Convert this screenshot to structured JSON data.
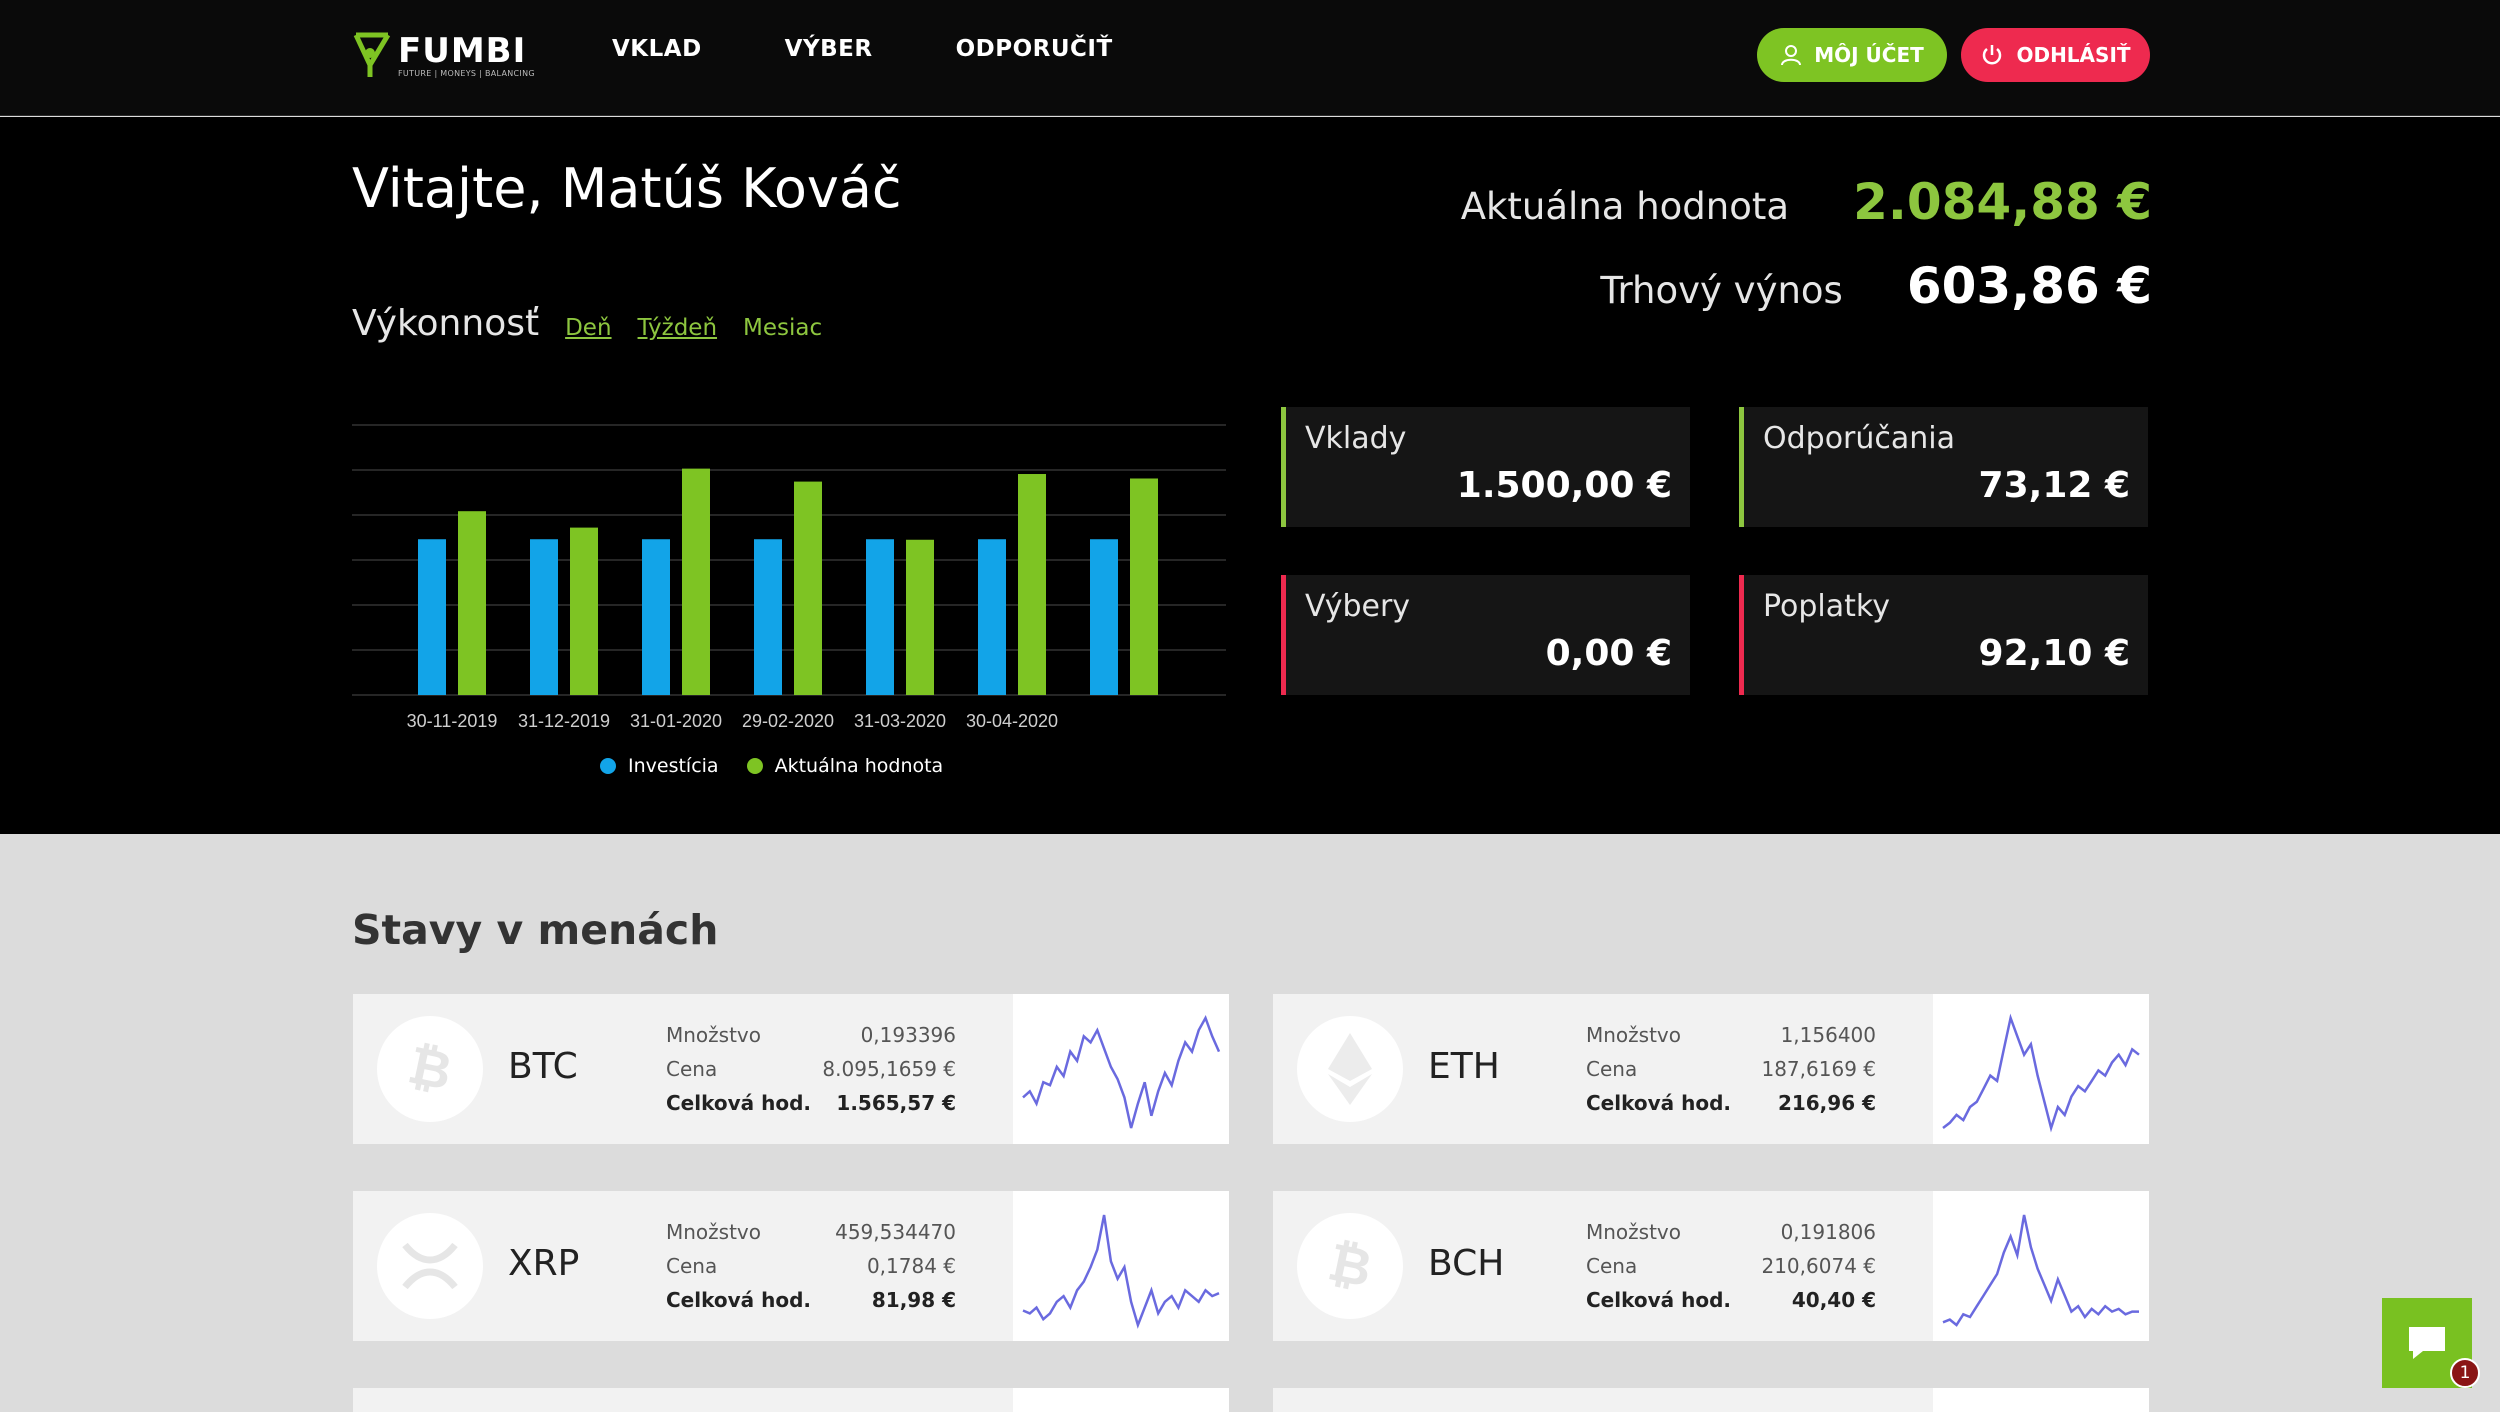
{
  "header": {
    "logo_word": "FUMBI",
    "logo_tagline": "FUTURE | MONEYS | BALANCING",
    "nav": [
      "VKLAD",
      "VÝBER",
      "ODPORUČIŤ"
    ],
    "account_label": "MÔJ ÚČET",
    "logout_label": "ODHLÁSIŤ"
  },
  "hero": {
    "welcome": "Vitajte, Matúš Kováč",
    "performance_title": "Výkonnosť",
    "tabs": [
      "Deň",
      "Týždeň",
      "Mesiac"
    ],
    "current_value_label": "Aktuálna hodnota",
    "current_value": "2.084,88 €",
    "market_return_label": "Trhový výnos",
    "market_return": "603,86 €"
  },
  "cards": [
    {
      "label": "Vklady",
      "value": "1.500,00 €",
      "accent": "#8dc63f"
    },
    {
      "label": "Odporúčania",
      "value": "73,12 €",
      "accent": "#8dc63f"
    },
    {
      "label": "Výbery",
      "value": "0,00 €",
      "accent": "#ee2a4f"
    },
    {
      "label": "Poplatky",
      "value": "92,10 €",
      "accent": "#ee2a4f"
    }
  ],
  "chart_data": {
    "type": "bar",
    "categories": [
      "30-11-2019",
      "31-12-2019",
      "31-01-2020",
      "29-02-2020",
      "31-03-2020",
      "30-04-2020",
      ""
    ],
    "series": [
      {
        "name": "Investícia",
        "values": [
          1500,
          1500,
          1500,
          1500,
          1500,
          1500,
          1500
        ],
        "color": "#12a4e8"
      },
      {
        "name": "Aktuálna hodnota",
        "values": [
          1770,
          1612,
          2180,
          2055,
          1495,
          2128,
          2084.88
        ],
        "color": "#7ec423"
      }
    ],
    "ylim": [
      0,
      2600
    ],
    "grid": true,
    "legend": "bottom"
  },
  "currencies": {
    "title": "Stavy v menách",
    "labels": {
      "qty": "Množstvo",
      "price": "Cena",
      "total": "Celková hod."
    },
    "items": [
      {
        "symbol": "BTC",
        "qty": "0,193396",
        "price": "8.095,1659 €",
        "total": "1.565,57 €",
        "icon": "bitcoin-icon",
        "spark": [
          40,
          42,
          38,
          45,
          44,
          50,
          47,
          55,
          52,
          60,
          58,
          62,
          56,
          50,
          46,
          40,
          30,
          38,
          45,
          34,
          42,
          48,
          44,
          52,
          58,
          55,
          62,
          66,
          60,
          55
        ]
      },
      {
        "symbol": "ETH",
        "qty": "1,156400",
        "price": "187,6169 €",
        "total": "216,96 €",
        "icon": "ethereum-icon",
        "spark": [
          30,
          32,
          35,
          33,
          38,
          40,
          45,
          50,
          48,
          60,
          72,
          65,
          58,
          62,
          50,
          40,
          30,
          38,
          35,
          42,
          46,
          44,
          48,
          52,
          50,
          55,
          58,
          54,
          60,
          58
        ]
      },
      {
        "symbol": "XRP",
        "qty": "459,534470",
        "price": "0,1784 €",
        "total": "81,98 €",
        "icon": "xrp-icon",
        "spark": [
          45,
          44,
          46,
          42,
          44,
          48,
          50,
          46,
          52,
          55,
          60,
          66,
          78,
          62,
          56,
          60,
          48,
          40,
          46,
          52,
          44,
          48,
          50,
          46,
          52,
          50,
          48,
          52,
          50,
          51
        ]
      },
      {
        "symbol": "BCH",
        "qty": "0,191806",
        "price": "210,6074 €",
        "total": "40,40 €",
        "icon": "bitcoin-cash-icon",
        "spark": [
          30,
          31,
          29,
          33,
          32,
          36,
          40,
          44,
          48,
          56,
          62,
          55,
          70,
          58,
          50,
          44,
          38,
          46,
          40,
          34,
          36,
          32,
          35,
          33,
          36,
          34,
          35,
          33,
          34,
          34
        ]
      }
    ]
  },
  "chat": {
    "badge": "1"
  }
}
